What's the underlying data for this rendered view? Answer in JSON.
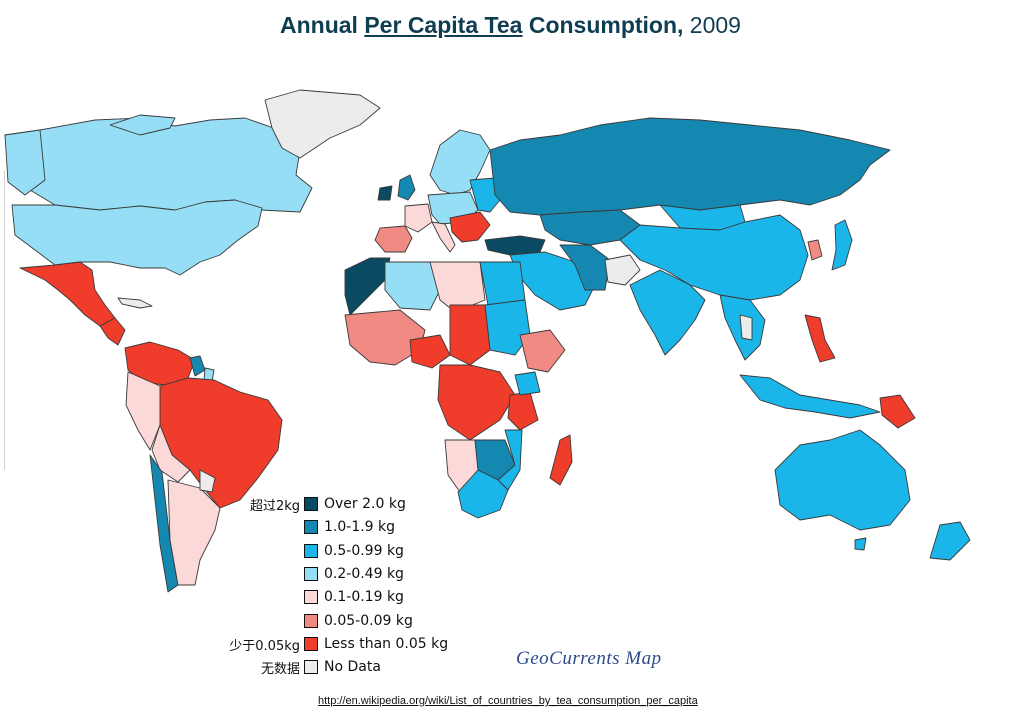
{
  "title": {
    "part1": "Annual ",
    "part2_underlined": "Per Capita Tea",
    "part3": " Consumption,",
    "year": " 2009"
  },
  "colors": {
    "over_2": "#0b4a63",
    "c1_to_1_9": "#1488b0",
    "c0_5_to_0_99": "#1ab6ea",
    "c0_2_to_0_49": "#96def5",
    "c0_1_to_0_19": "#fbd9d9",
    "c0_05_to_0_09": "#f08a83",
    "under_0_05": "#f03c2b",
    "no_data": "#ececec",
    "ocean": "#ffffff"
  },
  "legend": [
    {
      "cn": "超过2kg",
      "label": "Over 2.0 kg",
      "color": "#0b4a63"
    },
    {
      "cn": "",
      "label": "1.0-1.9 kg",
      "color": "#1488b0"
    },
    {
      "cn": "",
      "label": "0.5-0.99 kg",
      "color": "#1ab6ea"
    },
    {
      "cn": "",
      "label": "0.2-0.49 kg",
      "color": "#96def5"
    },
    {
      "cn": "",
      "label": "0.1-0.19 kg",
      "color": "#fbd9d9"
    },
    {
      "cn": "",
      "label": "0.05-0.09 kg",
      "color": "#f08a83"
    },
    {
      "cn": "少于0.05kg",
      "label": "Less than 0.05 kg",
      "color": "#f03c2b"
    },
    {
      "cn": "无数据",
      "label": "No Data",
      "color": "#ececec"
    }
  ],
  "watermark": "GeoCurrents Map",
  "source_url": "http://en.wikipedia.org/wiki/List_of_countries_by_tea_consumption_per_capita"
}
